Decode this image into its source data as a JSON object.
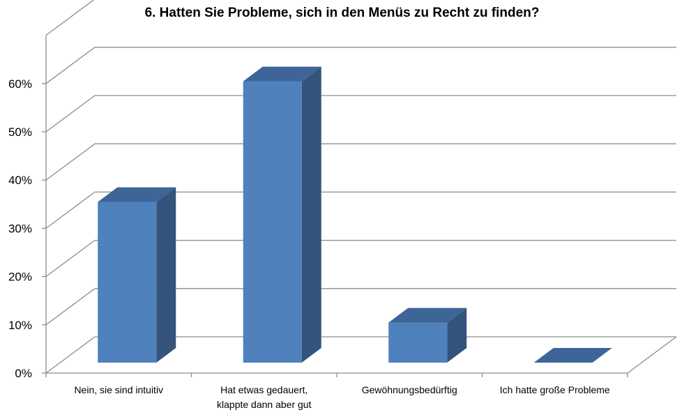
{
  "chart_data": {
    "type": "bar",
    "title": "6. Hatten Sie Probleme, sich in den Menüs zu Recht zu finden?",
    "categories": [
      [
        "Nein, sie sind intuitiv"
      ],
      [
        "Hat etwas gedauert,",
        "klappte dann aber gut"
      ],
      [
        "Gewöhnungsbedürftig"
      ],
      [
        "Ich hatte große Probleme"
      ]
    ],
    "values": [
      33.3,
      58.3,
      8.3,
      0
    ],
    "ylim": [
      0,
      60
    ],
    "yticks": [
      "0%",
      "10%",
      "20%",
      "30%",
      "40%",
      "50%",
      "60%"
    ],
    "grid": true,
    "style": "3d-column",
    "colors": {
      "front": "#4f81bd",
      "side": "#34547c",
      "top": "#3d6597",
      "grid": "#8c8c8c"
    }
  }
}
